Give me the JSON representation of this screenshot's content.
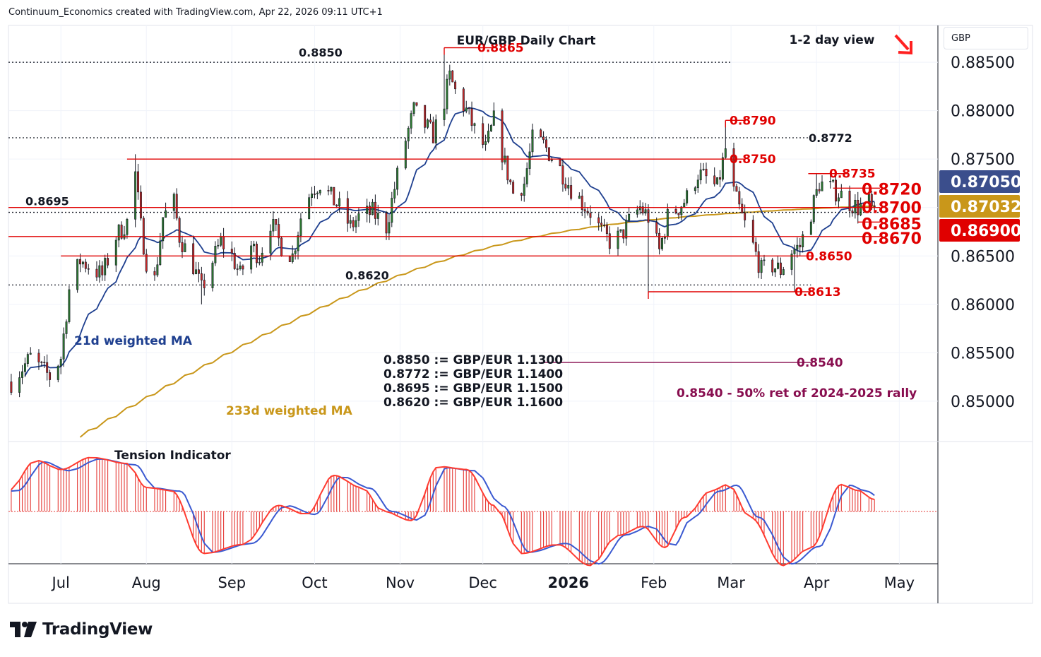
{
  "header": {
    "attribution": "Continuum_Economics created with TradingView.com, Apr 22, 2026 09:11 UTC+1"
  },
  "currency_selector": "GBP",
  "brand": "TradingView",
  "chart_data": {
    "type": "candlestick",
    "title": "EUR/GBP Daily Chart",
    "subtitle": "1-2 day view",
    "view_direction": "down",
    "y_axis": {
      "ticks": [
        "0.88500",
        "0.88000",
        "0.87500",
        "0.87000",
        "0.86500",
        "0.86000",
        "0.85500",
        "0.85000"
      ],
      "range": [
        0.8462,
        0.8888
      ],
      "position": "right"
    },
    "x_axis": {
      "ticks": [
        "Jul",
        "Aug",
        "Sep",
        "Oct",
        "Nov",
        "Dec",
        "2026",
        "Feb",
        "Mar",
        "Apr",
        "May"
      ],
      "tick_dates": [
        "2025-07-01",
        "2025-08-01",
        "2025-09-01",
        "2025-10-01",
        "2025-11-01",
        "2025-12-01",
        "2026-01-01",
        "2026-02-01",
        "2026-03-01",
        "2026-04-01",
        "2026-05-01"
      ],
      "range": [
        "2025-06-12",
        "2026-05-15"
      ]
    },
    "price_path": [
      [
        "2025-06-13",
        0.852
      ],
      [
        "2025-06-20",
        0.8545
      ],
      [
        "2025-06-27",
        0.8525
      ],
      [
        "2025-07-01",
        0.8545
      ],
      [
        "2025-07-04",
        0.8615
      ],
      [
        "2025-07-08",
        0.8645
      ],
      [
        "2025-07-11",
        0.864
      ],
      [
        "2025-07-16",
        0.863
      ],
      [
        "2025-07-21",
        0.867
      ],
      [
        "2025-07-25",
        0.8685
      ],
      [
        "2025-07-28",
        0.8735
      ],
      [
        "2025-07-30",
        0.868
      ],
      [
        "2025-08-01",
        0.8645
      ],
      [
        "2025-08-04",
        0.8625
      ],
      [
        "2025-08-07",
        0.869
      ],
      [
        "2025-08-11",
        0.8705
      ],
      [
        "2025-08-13",
        0.867
      ],
      [
        "2025-08-18",
        0.864
      ],
      [
        "2025-08-21",
        0.8615
      ],
      [
        "2025-08-25",
        0.8645
      ],
      [
        "2025-08-28",
        0.8665
      ],
      [
        "2025-09-01",
        0.865
      ],
      [
        "2025-09-04",
        0.863
      ],
      [
        "2025-09-08",
        0.866
      ],
      [
        "2025-09-11",
        0.865
      ],
      [
        "2025-09-15",
        0.8685
      ],
      [
        "2025-09-19",
        0.866
      ],
      [
        "2025-09-23",
        0.865
      ],
      [
        "2025-09-26",
        0.869
      ],
      [
        "2025-09-30",
        0.872
      ],
      [
        "2025-10-03",
        0.8725
      ],
      [
        "2025-10-07",
        0.871
      ],
      [
        "2025-10-10",
        0.87
      ],
      [
        "2025-10-14",
        0.868
      ],
      [
        "2025-10-17",
        0.869
      ],
      [
        "2025-10-22",
        0.8695
      ],
      [
        "2025-10-27",
        0.868
      ],
      [
        "2025-10-30",
        0.872
      ],
      [
        "2025-11-03",
        0.877
      ],
      [
        "2025-11-06",
        0.88
      ],
      [
        "2025-11-10",
        0.8785
      ],
      [
        "2025-11-13",
        0.8775
      ],
      [
        "2025-11-17",
        0.881
      ],
      [
        "2025-11-19",
        0.8835
      ],
      [
        "2025-11-21",
        0.882
      ],
      [
        "2025-11-25",
        0.88
      ],
      [
        "2025-11-28",
        0.878
      ],
      [
        "2025-12-02",
        0.876
      ],
      [
        "2025-12-05",
        0.879
      ],
      [
        "2025-12-09",
        0.8745
      ],
      [
        "2025-12-12",
        0.8715
      ],
      [
        "2025-12-16",
        0.8725
      ],
      [
        "2025-12-19",
        0.877
      ],
      [
        "2025-12-23",
        0.8765
      ],
      [
        "2025-12-29",
        0.874
      ],
      [
        "2026-01-02",
        0.872
      ],
      [
        "2026-01-06",
        0.8705
      ],
      [
        "2026-01-09",
        0.8695
      ],
      [
        "2026-01-13",
        0.8675
      ],
      [
        "2026-01-16",
        0.8665
      ],
      [
        "2026-01-20",
        0.867
      ],
      [
        "2026-01-23",
        0.8685
      ],
      [
        "2026-01-27",
        0.87
      ],
      [
        "2026-01-30",
        0.869
      ],
      [
        "2026-02-03",
        0.8655
      ],
      [
        "2026-02-06",
        0.869
      ],
      [
        "2026-02-10",
        0.87
      ],
      [
        "2026-02-13",
        0.871
      ],
      [
        "2026-02-17",
        0.8735
      ],
      [
        "2026-02-20",
        0.873
      ],
      [
        "2026-02-24",
        0.872
      ],
      [
        "2026-02-27",
        0.876
      ],
      [
        "2026-03-02",
        0.8715
      ],
      [
        "2026-03-05",
        0.869
      ],
      [
        "2026-03-09",
        0.866
      ],
      [
        "2026-03-12",
        0.8635
      ],
      [
        "2026-03-16",
        0.864
      ],
      [
        "2026-03-19",
        0.8635
      ],
      [
        "2026-03-23",
        0.8655
      ],
      [
        "2026-03-26",
        0.866
      ],
      [
        "2026-03-30",
        0.8695
      ],
      [
        "2026-04-02",
        0.8725
      ],
      [
        "2026-04-06",
        0.872
      ],
      [
        "2026-04-09",
        0.8715
      ],
      [
        "2026-04-13",
        0.8705
      ],
      [
        "2026-04-16",
        0.87
      ],
      [
        "2026-04-20",
        0.8705
      ],
      [
        "2026-04-22",
        0.869
      ]
    ],
    "swing_extremes": [
      [
        "2025-07-28",
        0.8755,
        "high"
      ],
      [
        "2025-08-21",
        0.86,
        "low"
      ],
      [
        "2025-11-17",
        0.8865,
        "high"
      ],
      [
        "2026-01-30",
        0.8613,
        "low"
      ],
      [
        "2026-02-27",
        0.879,
        "high"
      ],
      [
        "2026-03-24",
        0.8613,
        "low"
      ],
      [
        "2026-04-01",
        0.8735,
        "high"
      ]
    ],
    "series": [
      {
        "name": "21d weighted MA",
        "color": "#1e3f8f"
      },
      {
        "name": "233d weighted MA",
        "color": "#c9971a"
      }
    ],
    "levels": [
      {
        "value": 0.885,
        "label": "0.8850",
        "style": "dotted",
        "color": "#131722",
        "from": "2025-06-12",
        "to": "2026-03-01"
      },
      {
        "value": 0.8772,
        "label": "0.8772",
        "style": "dotted",
        "color": "#131722",
        "from": "2025-06-12",
        "to": "2026-04-01"
      },
      {
        "value": 0.8695,
        "label": "0.8695",
        "style": "dotted",
        "color": "#131722",
        "from": "2025-06-12",
        "to": "2026-04-25"
      },
      {
        "value": 0.862,
        "label": "0.8620",
        "style": "dotted",
        "color": "#131722",
        "from": "2025-06-12",
        "to": "2026-03-30"
      },
      {
        "value": 0.8865,
        "label": "0.8865",
        "style": "solid",
        "color": "#e00000",
        "from": "2025-11-17",
        "to": "2025-12-06"
      },
      {
        "value": 0.879,
        "label": "0.8790",
        "style": "solid",
        "color": "#e00000",
        "from": "2026-02-27",
        "to": "2026-03-06"
      },
      {
        "value": 0.875,
        "label": "0.8750",
        "style": "solid",
        "color": "#e00000",
        "from": "2025-07-25",
        "to": "2026-03-06"
      },
      {
        "value": 0.8735,
        "label": "0.8735",
        "style": "solid",
        "color": "#e00000",
        "from": "2026-03-29",
        "to": "2026-04-12"
      },
      {
        "value": 0.872,
        "label": "0.8720",
        "style": "solid",
        "color": "#e00000",
        "from": "2026-04-07",
        "to": "2026-04-24"
      },
      {
        "value": 0.87,
        "label": "0.8700",
        "style": "solid",
        "color": "#e00000",
        "from": "2025-06-12",
        "to": "2026-04-24"
      },
      {
        "value": 0.8685,
        "label": "0.8685",
        "style": "solid",
        "color": "#e00000",
        "from": "2026-04-16",
        "to": "2026-04-24"
      },
      {
        "value": 0.867,
        "label": "0.8670",
        "style": "solid",
        "color": "#e00000",
        "from": "2025-06-12",
        "to": "2026-04-24"
      },
      {
        "value": 0.865,
        "label": "0.8650",
        "style": "solid",
        "color": "#e00000",
        "from": "2025-07-01",
        "to": "2026-03-31"
      },
      {
        "value": 0.8613,
        "label": "0.8613",
        "style": "solid",
        "color": "#e00000",
        "from": "2026-01-30",
        "to": "2026-03-30"
      },
      {
        "value": 0.854,
        "label": "0.8540",
        "style": "solid",
        "color": "#880e4f",
        "from": "2025-12-22",
        "to": "2026-03-30"
      }
    ],
    "price_tags": [
      {
        "value": 0.8705,
        "label": "0.87050",
        "color": "#3b4e8c"
      },
      {
        "value": 0.87032,
        "label": "0.87032",
        "color": "#c9971a"
      },
      {
        "value": 0.869,
        "label": "0.86900",
        "color": "#e00000"
      }
    ],
    "annotations": {
      "ma21_label": "21d weighted MA",
      "ma233_label": "233d weighted MA",
      "conversions": [
        "0.8850 := GBP/EUR 1.1300",
        "0.8772 := GBP/EUR 1.1400",
        "0.8695 := GBP/EUR 1.1500",
        "0.8620 := GBP/EUR 1.1600"
      ],
      "retracement_note": "0.8540 - 50% ret of 2024-2025 rally"
    },
    "oscillator": {
      "name": "Tension Indicator",
      "style": "histogram with two smoothed lines",
      "colors": {
        "bars": "#e53935",
        "fast": "#ff3b30",
        "slow": "#3a59d1"
      },
      "range": [
        -1,
        1
      ],
      "path": [
        [
          "2025-06-12",
          0.35
        ],
        [
          "2025-06-22",
          0.85
        ],
        [
          "2025-07-01",
          0.7
        ],
        [
          "2025-07-12",
          0.9
        ],
        [
          "2025-07-25",
          0.8
        ],
        [
          "2025-08-01",
          0.4
        ],
        [
          "2025-08-10",
          0.35
        ],
        [
          "2025-08-22",
          -0.7
        ],
        [
          "2025-09-05",
          -0.55
        ],
        [
          "2025-09-18",
          0.1
        ],
        [
          "2025-09-28",
          -0.05
        ],
        [
          "2025-10-08",
          0.6
        ],
        [
          "2025-10-18",
          0.4
        ],
        [
          "2025-10-26",
          0.0
        ],
        [
          "2025-11-05",
          -0.15
        ],
        [
          "2025-11-15",
          0.75
        ],
        [
          "2025-11-25",
          0.7
        ],
        [
          "2025-12-05",
          0.1
        ],
        [
          "2025-12-15",
          -0.7
        ],
        [
          "2025-12-28",
          -0.55
        ],
        [
          "2026-01-09",
          -0.9
        ],
        [
          "2026-01-19",
          -0.4
        ],
        [
          "2026-01-28",
          -0.25
        ],
        [
          "2026-02-05",
          -0.6
        ],
        [
          "2026-02-12",
          -0.1
        ],
        [
          "2026-02-22",
          0.35
        ],
        [
          "2026-02-28",
          0.45
        ],
        [
          "2026-03-08",
          -0.1
        ],
        [
          "2026-03-20",
          -0.9
        ],
        [
          "2026-03-30",
          -0.6
        ],
        [
          "2026-04-10",
          0.45
        ],
        [
          "2026-04-16",
          0.35
        ],
        [
          "2026-04-22",
          0.2
        ]
      ]
    }
  }
}
